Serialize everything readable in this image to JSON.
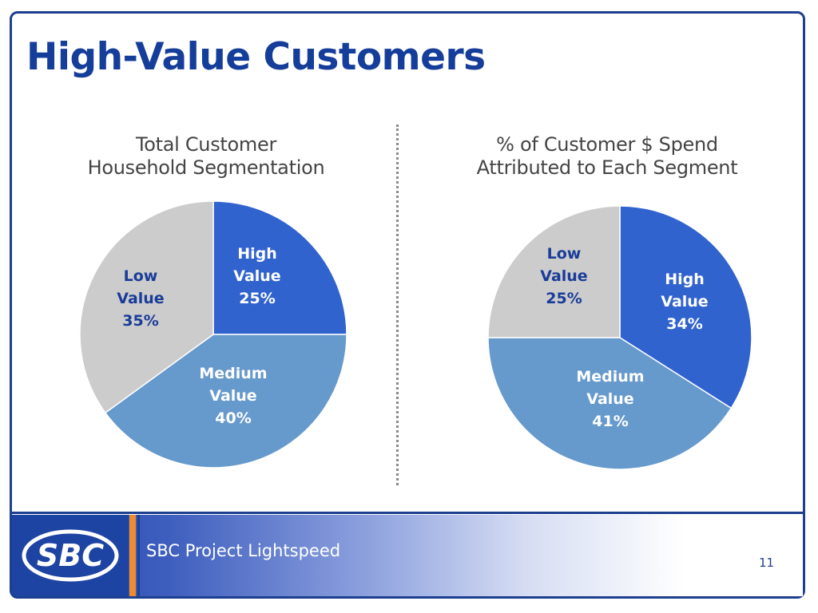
{
  "slide": {
    "title": "High-Value Customers",
    "footer_text": "SBC Project Lightspeed",
    "page_number": "11",
    "logo_text": "SBC"
  },
  "colors": {
    "frame": "#1d3f8f",
    "title": "#153d9a",
    "high": "#3163cf",
    "medium": "#6699cc",
    "low": "#cccccc",
    "label_text": "#1a3c99"
  },
  "chart_data": [
    {
      "type": "pie",
      "title_lines": [
        "Total Customer",
        "Household Segmentation"
      ],
      "slices": [
        {
          "label_lines": [
            "High",
            "Value",
            "25%"
          ],
          "value": 25,
          "color": "#3163cf",
          "text_color": "#ffffff"
        },
        {
          "label_lines": [
            "Medium",
            "Value",
            "40%"
          ],
          "value": 40,
          "color": "#6699cc",
          "text_color": "#ffffff"
        },
        {
          "label_lines": [
            "Low",
            "Value",
            "35%"
          ],
          "value": 35,
          "color": "#cccccc",
          "text_color": "#1a3c99"
        }
      ]
    },
    {
      "type": "pie",
      "title_lines": [
        "% of Customer $ Spend",
        "Attributed to Each Segment"
      ],
      "slices": [
        {
          "label_lines": [
            "High",
            "Value",
            "34%"
          ],
          "value": 34,
          "color": "#3163cf",
          "text_color": "#ffffff"
        },
        {
          "label_lines": [
            "Medium",
            "Value",
            "41%"
          ],
          "value": 41,
          "color": "#6699cc",
          "text_color": "#ffffff"
        },
        {
          "label_lines": [
            "Low",
            "Value",
            "25%"
          ],
          "value": 25,
          "color": "#cccccc",
          "text_color": "#1a3c99"
        }
      ]
    }
  ]
}
